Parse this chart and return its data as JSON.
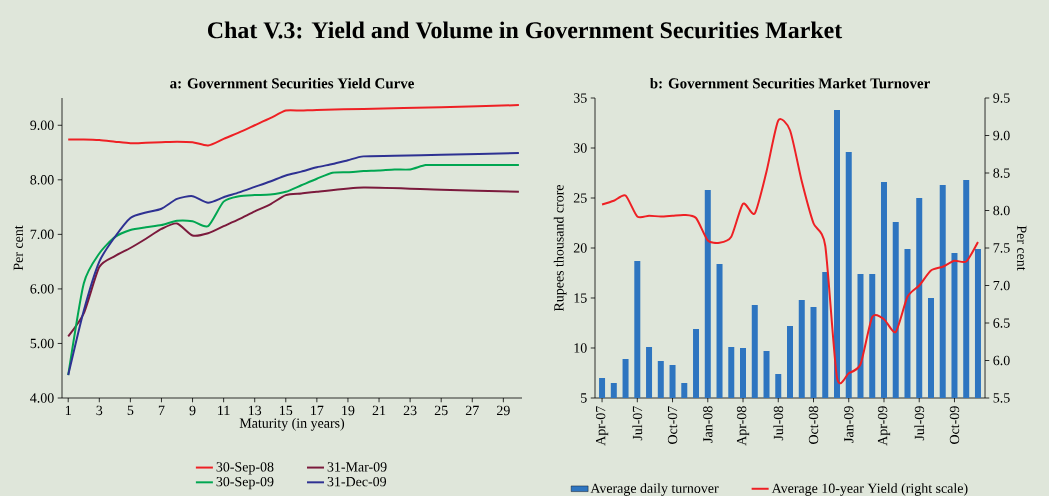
{
  "chart_data": [
    {
      "type": "line",
      "title": "Chat V.3: Yield and Volume in Government Securities Market",
      "subtitle": "a: Government Securities Yield Curve",
      "xlabel": "Maturity (in years)",
      "ylabel": "Per cent",
      "xlim": [
        0.6,
        30.2
      ],
      "xticks": [
        1,
        3,
        5,
        7,
        9,
        11,
        13,
        15,
        17,
        19,
        21,
        23,
        25,
        27,
        29
      ],
      "ylim": [
        4,
        9.5
      ],
      "yticks": [
        {
          "value": 4,
          "label": "4.00"
        },
        {
          "value": 5,
          "label": "5.00"
        },
        {
          "value": 6,
          "label": "6.00"
        },
        {
          "value": 7,
          "label": "7.00"
        },
        {
          "value": 8,
          "label": "8.00"
        },
        {
          "value": 9,
          "label": "9.00"
        }
      ],
      "legend": "bottom",
      "series": [
        {
          "name": "30-Sep-08",
          "color": "#ee2024",
          "x": [
            1,
            2,
            3,
            4,
            5,
            6,
            7,
            8,
            9,
            10,
            11,
            12,
            13,
            14,
            15,
            16,
            17,
            20,
            25,
            30
          ],
          "values": [
            8.74,
            8.74,
            8.73,
            8.7,
            8.67,
            8.68,
            8.69,
            8.7,
            8.69,
            8.63,
            8.75,
            8.87,
            9.0,
            9.13,
            9.27,
            9.27,
            9.28,
            9.3,
            9.33,
            9.37
          ]
        },
        {
          "name": "31-Mar-09",
          "color": "#7b1a3c",
          "x": [
            1,
            2,
            3,
            4,
            5,
            6,
            7,
            8,
            9,
            10,
            11,
            12,
            13,
            14,
            15,
            16,
            17,
            20,
            25,
            30
          ],
          "values": [
            5.13,
            5.55,
            6.4,
            6.6,
            6.75,
            6.92,
            7.1,
            7.2,
            6.98,
            7.02,
            7.15,
            7.28,
            7.42,
            7.55,
            7.72,
            7.75,
            7.78,
            7.86,
            7.82,
            7.78
          ]
        },
        {
          "name": "30-Sep-09",
          "color": "#00a651",
          "x": [
            1,
            2,
            3,
            4,
            5,
            6,
            7,
            8,
            9,
            10,
            11,
            12,
            13,
            14,
            15,
            16,
            17,
            18,
            19,
            20,
            21,
            22,
            23,
            24,
            25,
            30
          ],
          "values": [
            4.42,
            6.1,
            6.65,
            6.95,
            7.08,
            7.13,
            7.17,
            7.25,
            7.24,
            7.15,
            7.6,
            7.7,
            7.72,
            7.73,
            7.78,
            7.9,
            8.02,
            8.13,
            8.14,
            8.16,
            8.17,
            8.19,
            8.19,
            8.27,
            8.27,
            8.27
          ]
        },
        {
          "name": "31-Dec-09",
          "color": "#2e3192",
          "x": [
            1,
            2,
            3,
            4,
            5,
            6,
            7,
            8,
            9,
            10,
            11,
            12,
            13,
            14,
            15,
            16,
            17,
            18,
            19,
            20,
            22,
            25,
            30
          ],
          "values": [
            4.42,
            5.6,
            6.5,
            6.95,
            7.3,
            7.4,
            7.47,
            7.65,
            7.7,
            7.58,
            7.68,
            7.77,
            7.87,
            7.97,
            8.08,
            8.15,
            8.23,
            8.29,
            8.36,
            8.43,
            8.44,
            8.46,
            8.49
          ]
        }
      ]
    },
    {
      "type": "bar",
      "subtitle": "b: Government Securities Market Turnover",
      "ylabel": "Rupees thousand crore",
      "y2label": "Per cent",
      "categories": [
        "Apr-07",
        null,
        null,
        "Jul-07",
        null,
        null,
        "Oct-07",
        null,
        null,
        "Jan-08",
        null,
        null,
        "Apr-08",
        null,
        null,
        "Jul-08",
        null,
        null,
        "Oct-08",
        null,
        null,
        "Jan-09",
        null,
        null,
        "Apr-09",
        null,
        null,
        "Jul-09",
        null,
        null,
        "Oct-09",
        null,
        null
      ],
      "ylim": [
        5,
        35
      ],
      "yticks": [
        5,
        10,
        15,
        20,
        25,
        30,
        35
      ],
      "y2lim": [
        5.5,
        9.5
      ],
      "y2ticks": [
        5.5,
        {
          "value": 6,
          "label": "6.0"
        },
        6.5,
        {
          "value": 7,
          "label": "7.0"
        },
        7.5,
        {
          "value": 8,
          "label": "8.0"
        },
        8.5,
        {
          "value": 9,
          "label": "9.0"
        },
        9.5
      ],
      "legend": "bottom",
      "series": [
        {
          "name": "Average daily turnover",
          "color": "#2e75c0",
          "values": [
            7.0,
            6.5,
            8.9,
            18.7,
            10.1,
            8.7,
            8.3,
            6.5,
            11.9,
            25.8,
            18.4,
            10.1,
            10.0,
            14.3,
            9.7,
            7.4,
            12.2,
            14.8,
            14.1,
            17.6,
            33.8,
            29.6,
            17.4,
            17.4,
            26.6,
            22.6,
            19.9,
            25.0,
            15.0,
            26.3,
            19.5,
            26.8,
            19.9
          ]
        },
        {
          "name": "Average 10-year Yield (right scale)",
          "type": "line",
          "axis": "y2",
          "color": "#ee2024",
          "values": [
            8.08,
            8.13,
            8.2,
            7.92,
            7.93,
            7.92,
            7.93,
            7.94,
            7.9,
            7.6,
            7.57,
            7.65,
            8.09,
            7.96,
            8.52,
            9.2,
            9.07,
            8.39,
            7.83,
            7.53,
            5.77,
            5.83,
            5.95,
            6.58,
            6.55,
            6.38,
            6.85,
            7.0,
            7.2,
            7.25,
            7.33,
            7.32,
            7.58
          ]
        }
      ]
    }
  ]
}
